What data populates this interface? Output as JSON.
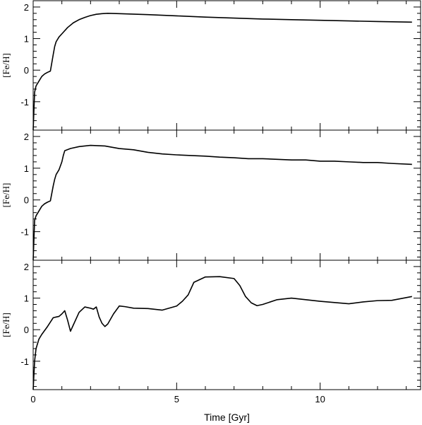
{
  "chart_data": [
    {
      "type": "line",
      "ylabel": "[Fe/H]",
      "xlim": [
        0,
        13.5
      ],
      "ylim": [
        -1.9,
        2.2
      ],
      "xticks": [
        0,
        5,
        10
      ],
      "yticks": [
        -1,
        0,
        1,
        2
      ],
      "series": [
        {
          "x": [
            0.0,
            0.05,
            0.1,
            0.2,
            0.3,
            0.4,
            0.5,
            0.6,
            0.7,
            0.75,
            0.8,
            0.9,
            1.0,
            1.2,
            1.4,
            1.6,
            1.8,
            2.0,
            2.2,
            2.4,
            2.6,
            3.0,
            4.0,
            5.0,
            6.0,
            7.0,
            8.0,
            9.0,
            10.0,
            11.0,
            12.0,
            13.2
          ],
          "y": [
            -1.9,
            -0.7,
            -0.5,
            -0.35,
            -0.2,
            -0.12,
            -0.07,
            -0.03,
            0.5,
            0.75,
            0.9,
            1.05,
            1.15,
            1.35,
            1.5,
            1.6,
            1.67,
            1.73,
            1.77,
            1.79,
            1.8,
            1.79,
            1.76,
            1.72,
            1.68,
            1.65,
            1.62,
            1.6,
            1.58,
            1.56,
            1.54,
            1.52
          ]
        }
      ]
    },
    {
      "type": "line",
      "ylabel": "[Fe/H]",
      "xlim": [
        0,
        13.5
      ],
      "ylim": [
        -1.9,
        2.2
      ],
      "xticks": [
        0,
        5,
        10
      ],
      "yticks": [
        -1,
        0,
        1,
        2
      ],
      "series": [
        {
          "x": [
            0.0,
            0.05,
            0.1,
            0.2,
            0.3,
            0.4,
            0.5,
            0.6,
            0.7,
            0.75,
            0.8,
            0.9,
            1.0,
            1.05,
            1.1,
            1.3,
            1.6,
            2.0,
            2.5,
            3.0,
            3.5,
            4.0,
            4.5,
            5.0,
            5.5,
            6.0,
            6.5,
            7.0,
            7.5,
            8.0,
            8.5,
            9.0,
            9.5,
            10.0,
            10.5,
            11.0,
            11.5,
            12.0,
            12.5,
            13.2
          ],
          "y": [
            -1.9,
            -0.65,
            -0.5,
            -0.35,
            -0.2,
            -0.12,
            -0.07,
            -0.03,
            0.45,
            0.65,
            0.8,
            0.95,
            1.2,
            1.4,
            1.55,
            1.62,
            1.68,
            1.72,
            1.7,
            1.62,
            1.58,
            1.5,
            1.45,
            1.42,
            1.4,
            1.38,
            1.35,
            1.33,
            1.3,
            1.3,
            1.28,
            1.26,
            1.26,
            1.22,
            1.22,
            1.2,
            1.18,
            1.18,
            1.15,
            1.12
          ]
        }
      ]
    },
    {
      "type": "line",
      "xlabel": "Time [Gyr]",
      "ylabel": "[Fe/H]",
      "xlim": [
        0,
        13.5
      ],
      "ylim": [
        -1.9,
        2.2
      ],
      "xticks": [
        0,
        5,
        10
      ],
      "yticks": [
        -1,
        0,
        1,
        2
      ],
      "series": [
        {
          "x": [
            0.0,
            0.05,
            0.1,
            0.2,
            0.3,
            0.5,
            0.7,
            0.8,
            0.9,
            1.0,
            1.1,
            1.2,
            1.3,
            1.4,
            1.6,
            1.8,
            2.0,
            2.1,
            2.2,
            2.3,
            2.4,
            2.5,
            2.6,
            2.8,
            3.0,
            3.2,
            3.5,
            4.0,
            4.5,
            5.0,
            5.2,
            5.4,
            5.6,
            6.0,
            6.5,
            7.0,
            7.2,
            7.4,
            7.6,
            7.8,
            8.0,
            8.5,
            9.0,
            9.5,
            10.0,
            10.5,
            11.0,
            11.5,
            12.0,
            12.5,
            13.2
          ],
          "y": [
            -1.9,
            -1.0,
            -0.6,
            -0.3,
            -0.15,
            0.1,
            0.38,
            0.4,
            0.42,
            0.5,
            0.6,
            0.3,
            -0.05,
            0.15,
            0.55,
            0.72,
            0.68,
            0.65,
            0.72,
            0.4,
            0.2,
            0.1,
            0.18,
            0.5,
            0.75,
            0.73,
            0.68,
            0.67,
            0.62,
            0.75,
            0.9,
            1.1,
            1.5,
            1.67,
            1.68,
            1.62,
            1.4,
            1.05,
            0.85,
            0.76,
            0.8,
            0.95,
            1.0,
            0.95,
            0.9,
            0.86,
            0.82,
            0.88,
            0.92,
            0.93,
            1.05
          ]
        }
      ]
    }
  ]
}
